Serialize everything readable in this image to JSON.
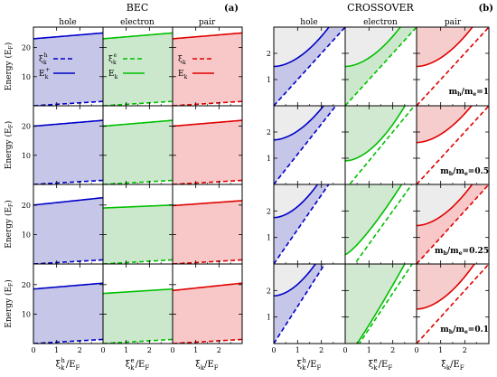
{
  "figure": {
    "panel_a": {
      "title": "BEC",
      "tag": "(a)"
    },
    "panel_b": {
      "title": "CROSSOVER",
      "tag": "(b)"
    },
    "column_titles": [
      "hole",
      "electron",
      "pair"
    ],
    "ylabel": "Energy (E",
    "ylabel_sub": "F",
    "ylabel_close": ")",
    "x_ticks": [
      "0",
      "1",
      "2"
    ],
    "xlabels": [
      {
        "base": "ξ",
        "sub": "k",
        "sup": "h",
        "tail": "/E",
        "tail_sub": "F"
      },
      {
        "base": "ξ",
        "sub": "k",
        "sup": "e",
        "tail": "/E",
        "tail_sub": "F"
      },
      {
        "base": "ξ",
        "sub": "k",
        "sup": "",
        "tail": "/E",
        "tail_sub": "F"
      }
    ],
    "legends": [
      {
        "items": [
          {
            "symbol": "ξ",
            "sub": "k",
            "sup": "h",
            "style": "dashed"
          },
          {
            "symbol": "E",
            "sub": "k",
            "sup": "+",
            "style": "solid"
          }
        ]
      },
      {
        "items": [
          {
            "symbol": "ξ",
            "sub": "k",
            "sup": "e",
            "style": "dashed"
          },
          {
            "symbol": "E",
            "sub": "k",
            "sup": "",
            "style": "solid"
          }
        ]
      },
      {
        "items": [
          {
            "symbol": "ξ",
            "sub": "k",
            "sup": "",
            "style": "dashed"
          },
          {
            "symbol": "E",
            "sub": "k",
            "sup": "",
            "style": "solid"
          }
        ]
      }
    ],
    "mass_labels": [
      {
        "pre": "m",
        "sub1": "h",
        "mid": "/m",
        "sub2": "e",
        "val": "=1"
      },
      {
        "pre": "m",
        "sub1": "h",
        "mid": "/m",
        "sub2": "e",
        "val": "=0.5"
      },
      {
        "pre": "m",
        "sub1": "h",
        "mid": "/m",
        "sub2": "e",
        "val": "=0.25"
      },
      {
        "pre": "m",
        "sub1": "h",
        "mid": "/m",
        "sub2": "e",
        "val": "=0.1"
      }
    ]
  },
  "chart_data": [
    {
      "type": "line",
      "title": "BEC",
      "tag": "(a)",
      "columns": [
        "hole",
        "electron",
        "pair"
      ],
      "colors": {
        "hole": "#0000c8",
        "electron": "#00c000",
        "pair": "#e00000"
      },
      "fill_colors": {
        "hole": "#c6c6e8",
        "electron": "#cce8cc",
        "pair": "#f8c8c8"
      },
      "xlim": [
        0,
        3
      ],
      "x_ticks": [
        0,
        1,
        2
      ],
      "ylim": [
        0,
        27
      ],
      "y_ticks": [
        10,
        20
      ],
      "ylabel": "Energy (EF)",
      "rows": [
        {
          "mh_me": 1,
          "E": {
            "hole": [
              23.0,
              25.0
            ],
            "electron": [
              23.0,
              25.0
            ],
            "pair": [
              23.0,
              25.0
            ]
          },
          "xi_end": {
            "hole": 1.5,
            "electron": 1.5,
            "pair": 1.5
          }
        },
        {
          "mh_me": 0.5,
          "E": {
            "hole": [
              20.0,
              22.0
            ],
            "electron": [
              20.0,
              22.0
            ],
            "pair": [
              20.0,
              22.0
            ]
          },
          "xi_end": {
            "hole": 1.4,
            "electron": 1.4,
            "pair": 1.4
          }
        },
        {
          "mh_me": 0.25,
          "E": {
            "hole": [
              20.0,
              22.5
            ],
            "electron": [
              19.0,
              20.0
            ],
            "pair": [
              19.8,
              21.5
            ]
          },
          "xi_end": {
            "hole": 1.4,
            "electron": 1.4,
            "pair": 1.4
          }
        },
        {
          "mh_me": 0.1,
          "E": {
            "hole": [
              18.5,
              20.5
            ],
            "electron": [
              17.0,
              18.5
            ],
            "pair": [
              18.0,
              20.5
            ]
          },
          "xi_end": {
            "hole": 1.4,
            "electron": 1.4,
            "pair": 1.4
          }
        }
      ]
    },
    {
      "type": "line",
      "title": "CROSSOVER",
      "tag": "(b)",
      "columns": [
        "hole",
        "electron",
        "pair"
      ],
      "colors": {
        "hole": "#0000c8",
        "electron": "#00c000",
        "pair": "#e00000"
      },
      "fill_colors": {
        "hole": "#c6c6e8",
        "electron": "#cce8cc",
        "pair": "#f8c8c8"
      },
      "xlim": [
        0,
        3
      ],
      "x_ticks": [
        0,
        1,
        2
      ],
      "ylim": [
        0,
        3
      ],
      "y_ticks": [
        1,
        2
      ],
      "rows": [
        {
          "mh_me": 1,
          "xi_at_x0": {
            "hole": 0.0,
            "electron": 0.0,
            "pair": 0.0
          },
          "xi_slope": {
            "hole": 1.0,
            "electron": 1.0,
            "pair": 1.0
          },
          "E_at_x0": {
            "hole": 1.5,
            "electron": 1.5,
            "pair": 1.5
          },
          "E_at_x3": {
            "hole": 3.9,
            "electron": 3.9,
            "pair": 3.9
          },
          "curve_shape": {
            "hole": 0.55,
            "electron": 0.55,
            "pair": 0.55
          },
          "shaded_region": {
            "hole": "between",
            "electron": "between",
            "pair": "above"
          }
        },
        {
          "mh_me": 0.5,
          "xi_at_x0": {
            "hole": 0.0,
            "electron": -0.2,
            "pair": 0.0
          },
          "xi_slope": {
            "hole": 1.15,
            "electron": 1.1,
            "pair": 1.0
          },
          "E_at_x0": {
            "hole": 1.7,
            "electron": 0.9,
            "pair": 1.6
          },
          "E_at_x3": {
            "hole": 4.2,
            "electron": 3.8,
            "pair": 3.9
          },
          "curve_shape": {
            "hole": 0.55,
            "electron": 0.55,
            "pair": 0.55
          },
          "shaded_region": {
            "hole": "between",
            "electron": "above",
            "pair": "above"
          }
        },
        {
          "mh_me": 0.25,
          "xi_at_x0": {
            "hole": 0.0,
            "electron": -0.5,
            "pair": 0.0
          },
          "xi_slope": {
            "hole": 1.3,
            "electron": 1.25,
            "pair": 1.0
          },
          "E_at_x0": {
            "hole": 1.75,
            "electron": 0.35,
            "pair": 1.45
          },
          "E_at_x3": {
            "hole": 4.8,
            "electron": 3.9,
            "pair": 3.95
          },
          "curve_shape": {
            "hole": 0.55,
            "electron": 0.8,
            "pair": 0.55
          },
          "shaded_region": {
            "hole": "between",
            "electron": "above",
            "pair": "between"
          }
        },
        {
          "mh_me": 0.1,
          "xi_at_x0": {
            "hole": 0.0,
            "electron": -0.8,
            "pair": 0.0
          },
          "xi_slope": {
            "hole": 1.4,
            "electron": 1.35,
            "pair": 1.0
          },
          "E_at_x0": {
            "hole": 1.8,
            "electron": -0.6,
            "pair": 1.3
          },
          "E_at_x3": {
            "hole": 5.0,
            "electron": 3.8,
            "pair": 3.85
          },
          "curve_shape": {
            "hole": 0.55,
            "electron": 0.9,
            "pair": 0.55
          },
          "shaded_region": {
            "hole": "between",
            "electron": "above",
            "pair": "above"
          }
        }
      ]
    }
  ]
}
